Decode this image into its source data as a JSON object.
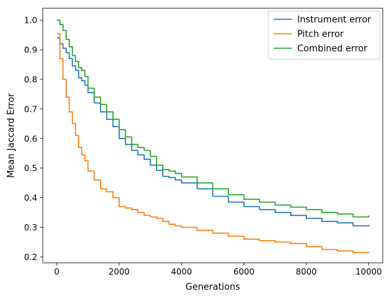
{
  "chart_data": {
    "type": "line",
    "xlabel": "Generations",
    "ylabel": "Mean Jaccard Error",
    "xlim": [
      -450,
      10450
    ],
    "ylim": [
      0.18,
      1.04
    ],
    "xticks": [
      0,
      2000,
      4000,
      6000,
      8000,
      10000
    ],
    "yticks": [
      0.2,
      0.3,
      0.4,
      0.5,
      0.6,
      0.7,
      0.8,
      0.9,
      1.0
    ],
    "ytick_labels": [
      "0.2",
      "0.3",
      "0.4",
      "0.5",
      "0.6",
      "0.7",
      "0.8",
      "0.9",
      "1.0"
    ],
    "grid": false,
    "legend_position": "top-right",
    "series": [
      {
        "name": "Instrument error",
        "color": "#1f77b4",
        "x": [
          0,
          100,
          200,
          300,
          400,
          500,
          600,
          700,
          800,
          900,
          1000,
          1200,
          1400,
          1600,
          1800,
          2000,
          2200,
          2400,
          2600,
          2800,
          3000,
          3200,
          3400,
          3600,
          3800,
          4000,
          4500,
          5000,
          5500,
          6000,
          6500,
          7000,
          7500,
          8000,
          8500,
          9000,
          9500,
          10000
        ],
        "values": [
          0.94,
          0.92,
          0.905,
          0.89,
          0.87,
          0.845,
          0.83,
          0.805,
          0.795,
          0.78,
          0.755,
          0.72,
          0.69,
          0.665,
          0.64,
          0.6,
          0.58,
          0.56,
          0.545,
          0.53,
          0.51,
          0.492,
          0.472,
          0.468,
          0.46,
          0.45,
          0.43,
          0.405,
          0.385,
          0.37,
          0.36,
          0.35,
          0.34,
          0.33,
          0.32,
          0.315,
          0.305,
          0.308
        ]
      },
      {
        "name": "Pitch error",
        "color": "#ff7f0e",
        "x": [
          0,
          100,
          200,
          300,
          400,
          500,
          600,
          700,
          800,
          900,
          1000,
          1200,
          1400,
          1600,
          1800,
          2000,
          2200,
          2400,
          2600,
          2800,
          3000,
          3200,
          3400,
          3600,
          3800,
          4000,
          4500,
          5000,
          5500,
          6000,
          6500,
          7000,
          7500,
          8000,
          8500,
          9000,
          9500,
          10000
        ],
        "values": [
          0.955,
          0.87,
          0.8,
          0.74,
          0.69,
          0.65,
          0.61,
          0.57,
          0.545,
          0.525,
          0.49,
          0.46,
          0.43,
          0.42,
          0.4,
          0.37,
          0.365,
          0.36,
          0.35,
          0.34,
          0.335,
          0.33,
          0.32,
          0.31,
          0.305,
          0.3,
          0.29,
          0.28,
          0.27,
          0.26,
          0.255,
          0.25,
          0.245,
          0.235,
          0.225,
          0.22,
          0.215,
          0.217
        ]
      },
      {
        "name": "Combined error",
        "color": "#2ca02c",
        "x": [
          0,
          100,
          200,
          300,
          400,
          500,
          600,
          700,
          800,
          900,
          1000,
          1200,
          1400,
          1600,
          1800,
          2000,
          2200,
          2400,
          2600,
          2800,
          3000,
          3200,
          3400,
          3600,
          3800,
          4000,
          4500,
          5000,
          5500,
          6000,
          6500,
          7000,
          7500,
          8000,
          8500,
          9000,
          9500,
          10000
        ],
        "values": [
          1.0,
          0.985,
          0.965,
          0.935,
          0.91,
          0.88,
          0.86,
          0.84,
          0.83,
          0.81,
          0.77,
          0.74,
          0.715,
          0.69,
          0.665,
          0.63,
          0.605,
          0.58,
          0.57,
          0.56,
          0.54,
          0.51,
          0.495,
          0.49,
          0.482,
          0.47,
          0.45,
          0.43,
          0.41,
          0.395,
          0.385,
          0.375,
          0.368,
          0.36,
          0.35,
          0.345,
          0.335,
          0.34
        ]
      }
    ]
  }
}
